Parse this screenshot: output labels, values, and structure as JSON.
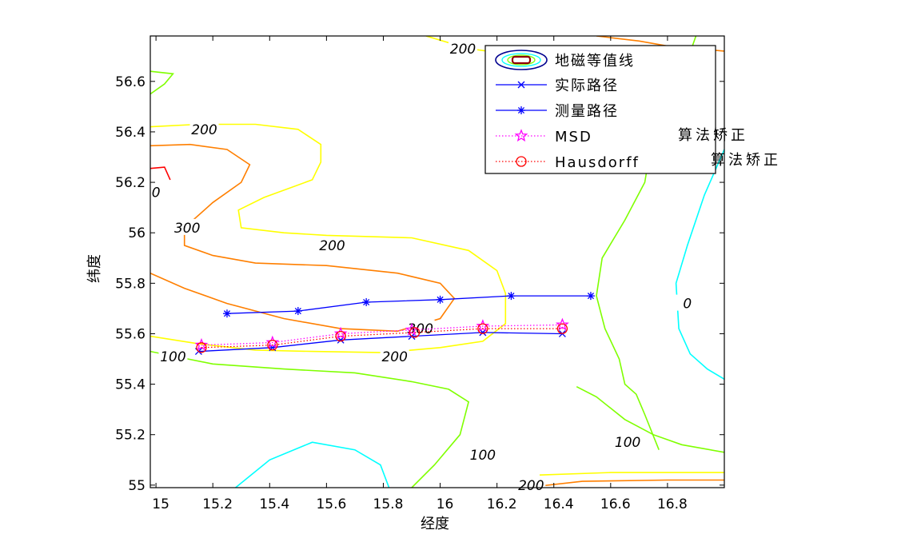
{
  "chart_data": {
    "type": "line",
    "xlabel": "经度",
    "ylabel": "纬度",
    "xlim": [
      14.98,
      17.0
    ],
    "ylim": [
      54.99,
      56.78
    ],
    "xticks": [
      15,
      15.2,
      15.4,
      15.6,
      15.8,
      16,
      16.2,
      16.4,
      16.6,
      16.8
    ],
    "xtick_labels": [
      "15",
      "15.2",
      "15.4",
      "15.6",
      "15.8",
      "16",
      "16.2",
      "16.4",
      "16.6",
      "16.8"
    ],
    "yticks": [
      55,
      55.2,
      55.4,
      55.6,
      55.8,
      56,
      56.2,
      56.4,
      56.6
    ],
    "ytick_labels": [
      "55",
      "55.2",
      "55.4",
      "55.6",
      "55.8",
      "56",
      "56.2",
      "56.4",
      "56.6"
    ],
    "legend_position": "top-right",
    "legend": [
      "地磁等值线",
      "实际路径",
      "测量路径",
      "MSD",
      "Hausdorff"
    ],
    "series": [
      {
        "name": "实际路径",
        "color": "#0000ff",
        "marker": "x",
        "x": [
          15.15,
          15.41,
          15.65,
          15.9,
          16.15,
          16.43
        ],
        "y": [
          55.53,
          55.545,
          55.575,
          55.59,
          55.605,
          55.6
        ]
      },
      {
        "name": "测量路径",
        "color": "#0000ff",
        "marker": "asterisk",
        "x": [
          15.25,
          15.5,
          15.74,
          16.0,
          16.25,
          16.53
        ],
        "y": [
          55.68,
          55.69,
          55.725,
          55.735,
          55.75,
          55.75
        ]
      },
      {
        "name": "MSD",
        "color": "#ff00ff",
        "marker": "star",
        "x": [
          15.16,
          15.41,
          15.65,
          15.9,
          16.15,
          16.43
        ],
        "y": [
          55.555,
          55.565,
          55.6,
          55.615,
          55.63,
          55.635
        ]
      },
      {
        "name": "Hausdorff",
        "color": "#ff0000",
        "marker": "circle",
        "x": [
          15.16,
          15.41,
          15.65,
          15.91,
          16.15,
          16.43
        ],
        "y": [
          55.545,
          55.555,
          55.59,
          55.605,
          55.62,
          55.62
        ]
      }
    ],
    "contours": [
      {
        "level": 300,
        "color": "#ff7f00",
        "points": [
          [
            14.98,
            55.84
          ],
          [
            15.1,
            55.78
          ],
          [
            15.25,
            55.72
          ],
          [
            15.45,
            55.66
          ],
          [
            15.65,
            55.62
          ],
          [
            15.85,
            55.61
          ],
          [
            16.0,
            55.66
          ],
          [
            16.05,
            55.74
          ],
          [
            16.0,
            55.8
          ],
          [
            15.85,
            55.84
          ],
          [
            15.6,
            55.87
          ],
          [
            15.35,
            55.88
          ],
          [
            15.2,
            55.91
          ],
          [
            15.1,
            55.95
          ],
          [
            15.1,
            56.02
          ],
          [
            15.2,
            56.12
          ],
          [
            15.3,
            56.2
          ],
          [
            15.33,
            56.27
          ],
          [
            15.25,
            56.33
          ],
          [
            15.12,
            56.35
          ],
          [
            14.98,
            56.345
          ]
        ]
      },
      {
        "level": 200,
        "color": "#ffff00",
        "points": [
          [
            14.98,
            55.59
          ],
          [
            15.15,
            55.56
          ],
          [
            15.35,
            55.535
          ],
          [
            15.55,
            55.53
          ],
          [
            15.8,
            55.525
          ],
          [
            16.0,
            55.545
          ],
          [
            16.15,
            55.57
          ],
          [
            16.23,
            55.64
          ],
          [
            16.23,
            55.76
          ],
          [
            16.2,
            55.85
          ],
          [
            16.1,
            55.93
          ],
          [
            15.9,
            55.98
          ],
          [
            15.6,
            55.99
          ],
          [
            15.45,
            56.0
          ],
          [
            15.3,
            56.02
          ],
          [
            15.29,
            56.09
          ],
          [
            15.38,
            56.14
          ],
          [
            15.55,
            56.21
          ],
          [
            15.58,
            56.28
          ],
          [
            15.58,
            56.35
          ],
          [
            15.5,
            56.41
          ],
          [
            15.35,
            56.43
          ],
          [
            15.15,
            56.43
          ],
          [
            14.98,
            56.42
          ]
        ]
      },
      {
        "level": 200,
        "color": "#ffff00",
        "points": [
          [
            15.95,
            56.78
          ],
          [
            16.1,
            56.73
          ],
          [
            16.3,
            56.7
          ],
          [
            16.5,
            56.68
          ]
        ]
      },
      {
        "level": 300,
        "color": "#ff7f00",
        "points": [
          [
            16.55,
            56.78
          ],
          [
            16.7,
            56.76
          ],
          [
            16.8,
            56.74
          ],
          [
            16.9,
            56.73
          ],
          [
            17.0,
            56.72
          ]
        ]
      },
      {
        "level": 100,
        "color": "#7fff00",
        "points": [
          [
            14.98,
            55.53
          ],
          [
            15.2,
            55.48
          ],
          [
            15.45,
            55.46
          ],
          [
            15.7,
            55.445
          ],
          [
            15.9,
            55.41
          ],
          [
            16.03,
            55.38
          ],
          [
            16.1,
            55.33
          ],
          [
            16.07,
            55.2
          ],
          [
            15.98,
            55.08
          ],
          [
            15.9,
            54.99
          ]
        ]
      },
      {
        "level": 100,
        "color": "#7fff00",
        "points": [
          [
            16.48,
            55.39
          ],
          [
            16.55,
            55.35
          ],
          [
            16.65,
            55.26
          ],
          [
            16.75,
            55.2
          ],
          [
            16.85,
            55.16
          ],
          [
            17.0,
            55.13
          ]
        ]
      },
      {
        "level": 100,
        "color": "#7fff00",
        "points": [
          [
            16.9,
            56.78
          ],
          [
            16.85,
            56.62
          ],
          [
            16.75,
            56.4
          ],
          [
            16.72,
            56.2
          ],
          [
            16.65,
            56.05
          ],
          [
            16.57,
            55.9
          ],
          [
            16.55,
            55.75
          ],
          [
            16.58,
            55.62
          ],
          [
            16.63,
            55.5
          ],
          [
            16.65,
            55.4
          ],
          [
            16.69,
            55.36
          ],
          [
            16.72,
            55.28
          ],
          [
            16.77,
            55.14
          ]
        ]
      },
      {
        "level": 0,
        "color": "#00ffff",
        "points": [
          [
            17.0,
            56.33
          ],
          [
            16.93,
            56.15
          ],
          [
            16.87,
            55.95
          ],
          [
            16.83,
            55.8
          ],
          [
            16.84,
            55.62
          ],
          [
            16.88,
            55.52
          ],
          [
            16.94,
            55.46
          ],
          [
            17.0,
            55.42
          ]
        ]
      },
      {
        "level": 0,
        "color": "#00ffff",
        "points": [
          [
            15.28,
            54.99
          ],
          [
            15.4,
            55.1
          ],
          [
            15.55,
            55.17
          ],
          [
            15.7,
            55.14
          ],
          [
            15.79,
            55.08
          ],
          [
            15.82,
            54.99
          ]
        ]
      },
      {
        "level": 100,
        "color": "#7fff00",
        "points": [
          [
            14.98,
            56.55
          ],
          [
            15.03,
            56.59
          ],
          [
            15.06,
            56.63
          ],
          [
            14.98,
            56.64
          ]
        ]
      },
      {
        "level": 0,
        "color": "#ff0000",
        "points": [
          [
            14.98,
            56.255
          ],
          [
            15.03,
            56.26
          ],
          [
            15.05,
            56.21
          ]
        ]
      },
      {
        "level": 200,
        "color": "#ffff00",
        "points": [
          [
            16.35,
            55.04
          ],
          [
            16.6,
            55.05
          ],
          [
            16.8,
            55.05
          ],
          [
            17.0,
            55.05
          ]
        ]
      },
      {
        "level": 300,
        "color": "#ff7f00",
        "points": [
          [
            16.3,
            54.99
          ],
          [
            16.5,
            55.015
          ],
          [
            16.8,
            55.02
          ],
          [
            17.0,
            55.02
          ]
        ]
      }
    ],
    "contour_labels": [
      {
        "text": "200",
        "x": 16.08,
        "y": 56.73
      },
      {
        "text": "200",
        "x": 15.17,
        "y": 56.41
      },
      {
        "text": "0",
        "x": 15.0,
        "y": 56.16
      },
      {
        "text": "300",
        "x": 15.11,
        "y": 56.02
      },
      {
        "text": "200",
        "x": 15.62,
        "y": 55.95
      },
      {
        "text": "300",
        "x": 15.93,
        "y": 55.62
      },
      {
        "text": "200",
        "x": 15.84,
        "y": 55.51
      },
      {
        "text": "100",
        "x": 15.06,
        "y": 55.51
      },
      {
        "text": "100",
        "x": 16.15,
        "y": 55.12
      },
      {
        "text": "100",
        "x": 16.66,
        "y": 55.17
      },
      {
        "text": "0",
        "x": 16.87,
        "y": 55.72
      },
      {
        "text": "200",
        "x": 16.32,
        "y": 55.0
      }
    ],
    "annotations": [
      "算法矫正",
      "算法矫正"
    ]
  }
}
